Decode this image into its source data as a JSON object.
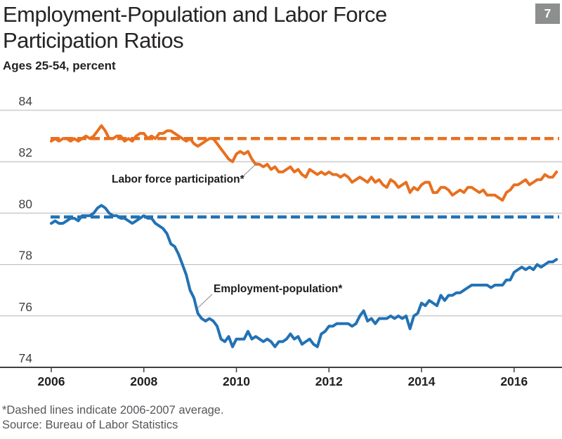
{
  "header": {
    "title": "Employment-Population and Labor Force Participation Ratios",
    "badge": "7",
    "subtitle": "Ages 25-54, percent"
  },
  "annotations": {
    "lfp": "Labor force participation*",
    "epop": "Employment-population*"
  },
  "footnotes": {
    "note": "*Dashed lines indicate 2006-2007 average.",
    "source": "Source: Bureau of Labor Statistics"
  },
  "colors": {
    "orange": "#E8701F",
    "blue": "#2272B4",
    "gridline": "#b6b6b6",
    "axis": "#3f3f3f",
    "badge_bg": "#8d8f8f",
    "leader": "#8a8a8a"
  },
  "chart_data": {
    "type": "line",
    "title": "Employment-Population and Labor Force Participation Ratios",
    "subtitle": "Ages 25-54, percent",
    "x_unit": "month",
    "x_start": "2006-01",
    "x_end": "2016-12",
    "x_ticks": [
      2006,
      2008,
      2010,
      2012,
      2014,
      2016
    ],
    "y_ticks": [
      84,
      82,
      80,
      78,
      76,
      74
    ],
    "ylim": [
      73.7,
      84.6
    ],
    "grid": true,
    "legend": "inline-annotations",
    "series": [
      {
        "name": "Labor force participation",
        "color": "#E8701F",
        "line": "solid",
        "values": [
          82.8,
          82.9,
          82.8,
          82.9,
          82.9,
          82.8,
          82.9,
          82.8,
          82.9,
          83.0,
          82.9,
          83.0,
          83.2,
          83.4,
          83.2,
          82.9,
          82.9,
          83.0,
          83.0,
          82.8,
          82.9,
          82.8,
          83.0,
          83.1,
          83.1,
          82.9,
          83.0,
          82.9,
          83.1,
          83.1,
          83.2,
          83.2,
          83.1,
          83.0,
          82.9,
          82.8,
          82.9,
          82.7,
          82.6,
          82.7,
          82.8,
          82.9,
          82.9,
          82.7,
          82.5,
          82.3,
          82.1,
          82.0,
          82.3,
          82.4,
          82.3,
          82.4,
          82.1,
          81.9,
          81.9,
          81.8,
          81.9,
          81.7,
          81.8,
          81.6,
          81.6,
          81.7,
          81.8,
          81.6,
          81.7,
          81.5,
          81.4,
          81.7,
          81.6,
          81.5,
          81.6,
          81.5,
          81.6,
          81.5,
          81.5,
          81.4,
          81.5,
          81.4,
          81.2,
          81.3,
          81.4,
          81.3,
          81.2,
          81.4,
          81.2,
          81.3,
          81.1,
          81.0,
          81.3,
          81.2,
          81.0,
          81.1,
          81.2,
          80.8,
          81.0,
          80.9,
          81.1,
          81.2,
          81.2,
          80.8,
          80.8,
          81.0,
          81.0,
          80.9,
          80.7,
          80.8,
          80.9,
          80.8,
          81.0,
          81.0,
          80.9,
          80.8,
          80.9,
          80.7,
          80.7,
          80.7,
          80.6,
          80.5,
          80.8,
          80.9,
          81.1,
          81.1,
          81.2,
          81.3,
          81.1,
          81.2,
          81.3,
          81.3,
          81.5,
          81.4,
          81.4,
          81.6
        ]
      },
      {
        "name": "Employment-population",
        "color": "#2272B4",
        "line": "solid",
        "values": [
          79.6,
          79.7,
          79.6,
          79.6,
          79.7,
          79.8,
          79.8,
          79.7,
          79.9,
          79.9,
          79.9,
          80.0,
          80.2,
          80.3,
          80.2,
          80.0,
          79.9,
          79.9,
          79.8,
          79.8,
          79.7,
          79.6,
          79.7,
          79.8,
          79.9,
          79.8,
          79.8,
          79.6,
          79.5,
          79.4,
          79.2,
          78.8,
          78.7,
          78.4,
          78.0,
          77.6,
          77.0,
          76.7,
          76.1,
          75.9,
          75.8,
          75.9,
          75.8,
          75.6,
          75.1,
          75.0,
          75.2,
          74.8,
          75.1,
          75.1,
          75.1,
          75.4,
          75.1,
          75.2,
          75.1,
          75.0,
          75.1,
          75.0,
          74.8,
          75.0,
          75.0,
          75.1,
          75.3,
          75.1,
          75.2,
          74.9,
          75.0,
          75.1,
          74.9,
          74.8,
          75.3,
          75.4,
          75.6,
          75.6,
          75.7,
          75.7,
          75.7,
          75.7,
          75.6,
          75.7,
          76.0,
          76.2,
          75.8,
          75.9,
          75.7,
          75.9,
          75.9,
          75.9,
          76.0,
          75.9,
          76.0,
          75.9,
          76.0,
          75.5,
          76.0,
          76.1,
          76.5,
          76.4,
          76.6,
          76.5,
          76.4,
          76.8,
          76.6,
          76.8,
          76.8,
          76.9,
          76.9,
          77.0,
          77.1,
          77.2,
          77.2,
          77.2,
          77.2,
          77.2,
          77.1,
          77.2,
          77.2,
          77.2,
          77.4,
          77.4,
          77.7,
          77.8,
          77.9,
          77.8,
          77.9,
          77.8,
          78.0,
          77.9,
          78.0,
          78.1,
          78.1,
          78.2
        ]
      },
      {
        "name": "Labor force participation 2006-2007 average",
        "color": "#E8701F",
        "line": "dashed",
        "value": 82.9
      },
      {
        "name": "Employment-population 2006-2007 average",
        "color": "#2272B4",
        "line": "dashed",
        "value": 79.85
      }
    ]
  }
}
